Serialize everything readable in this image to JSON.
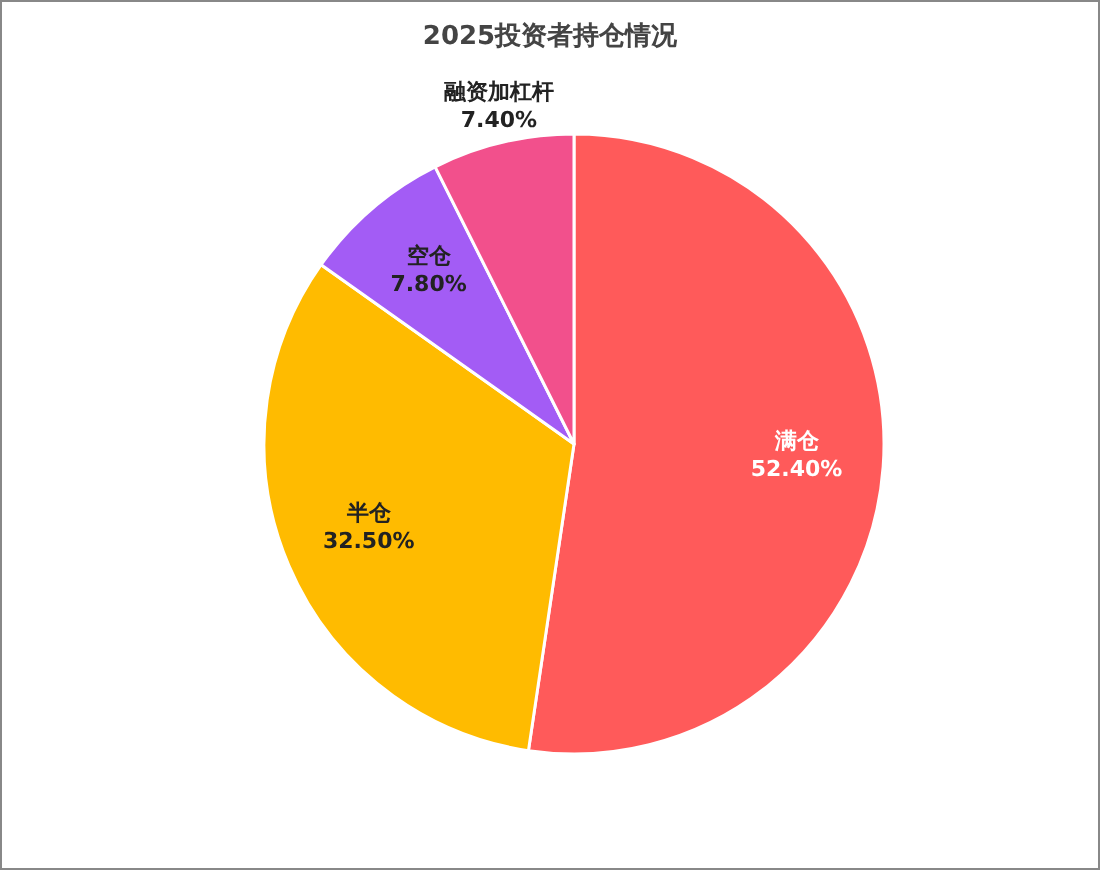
{
  "chart_data": {
    "type": "pie",
    "title": "2025投资者持仓情况",
    "categories": [
      "满仓",
      "半仓",
      "空仓",
      "融资加杠杆"
    ],
    "values": [
      52.4,
      32.5,
      7.8,
      7.4
    ],
    "colors": [
      "#ff5a5a",
      "#ffbb00",
      "#a35cf5",
      "#f2508c"
    ],
    "value_labels": [
      "52.40%",
      "32.50%",
      "7.80%",
      "7.40%"
    ]
  }
}
